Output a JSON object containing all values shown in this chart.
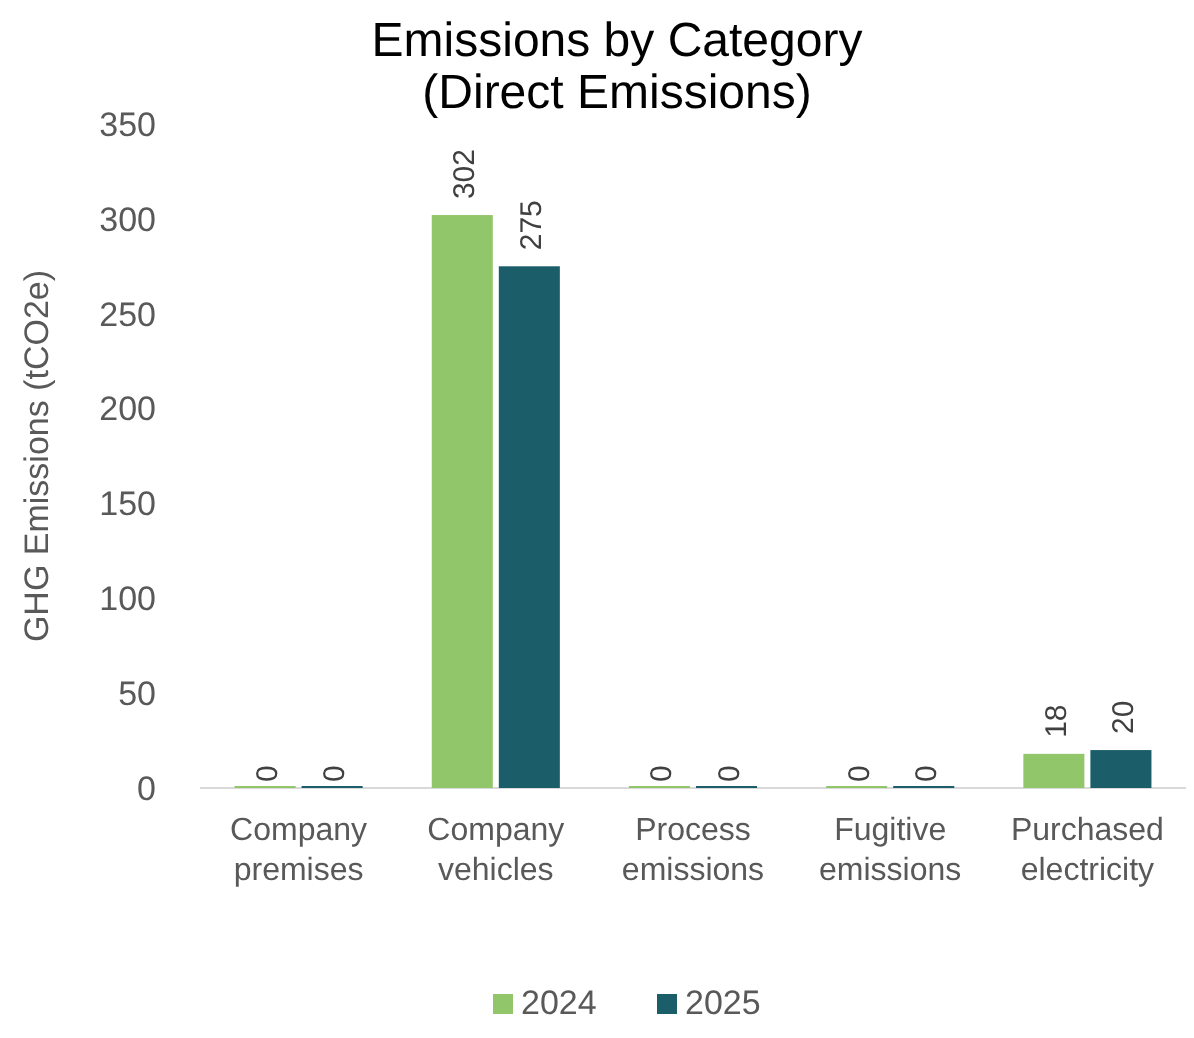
{
  "chart_data": {
    "type": "bar",
    "title": "Emissions by Category\n(Direct Emissions)",
    "ylabel": "GHG Emissions (tCO2e)",
    "categories": [
      "Company\npremises",
      "Company\nvehicles",
      "Process\nemissions",
      "Fugitive\nemissions",
      "Purchased\nelectricity"
    ],
    "series": [
      {
        "name": "2024",
        "color": "#92c66a",
        "values": [
          0,
          302,
          0,
          0,
          18
        ]
      },
      {
        "name": "2025",
        "color": "#1b5e6a",
        "values": [
          0,
          275,
          0,
          0,
          20
        ]
      }
    ],
    "ylim": [
      0,
      350
    ],
    "yticks": [
      0,
      50,
      100,
      150,
      200,
      250,
      300,
      350
    ],
    "grid": false,
    "legend": "bottom",
    "data_labels": true
  }
}
